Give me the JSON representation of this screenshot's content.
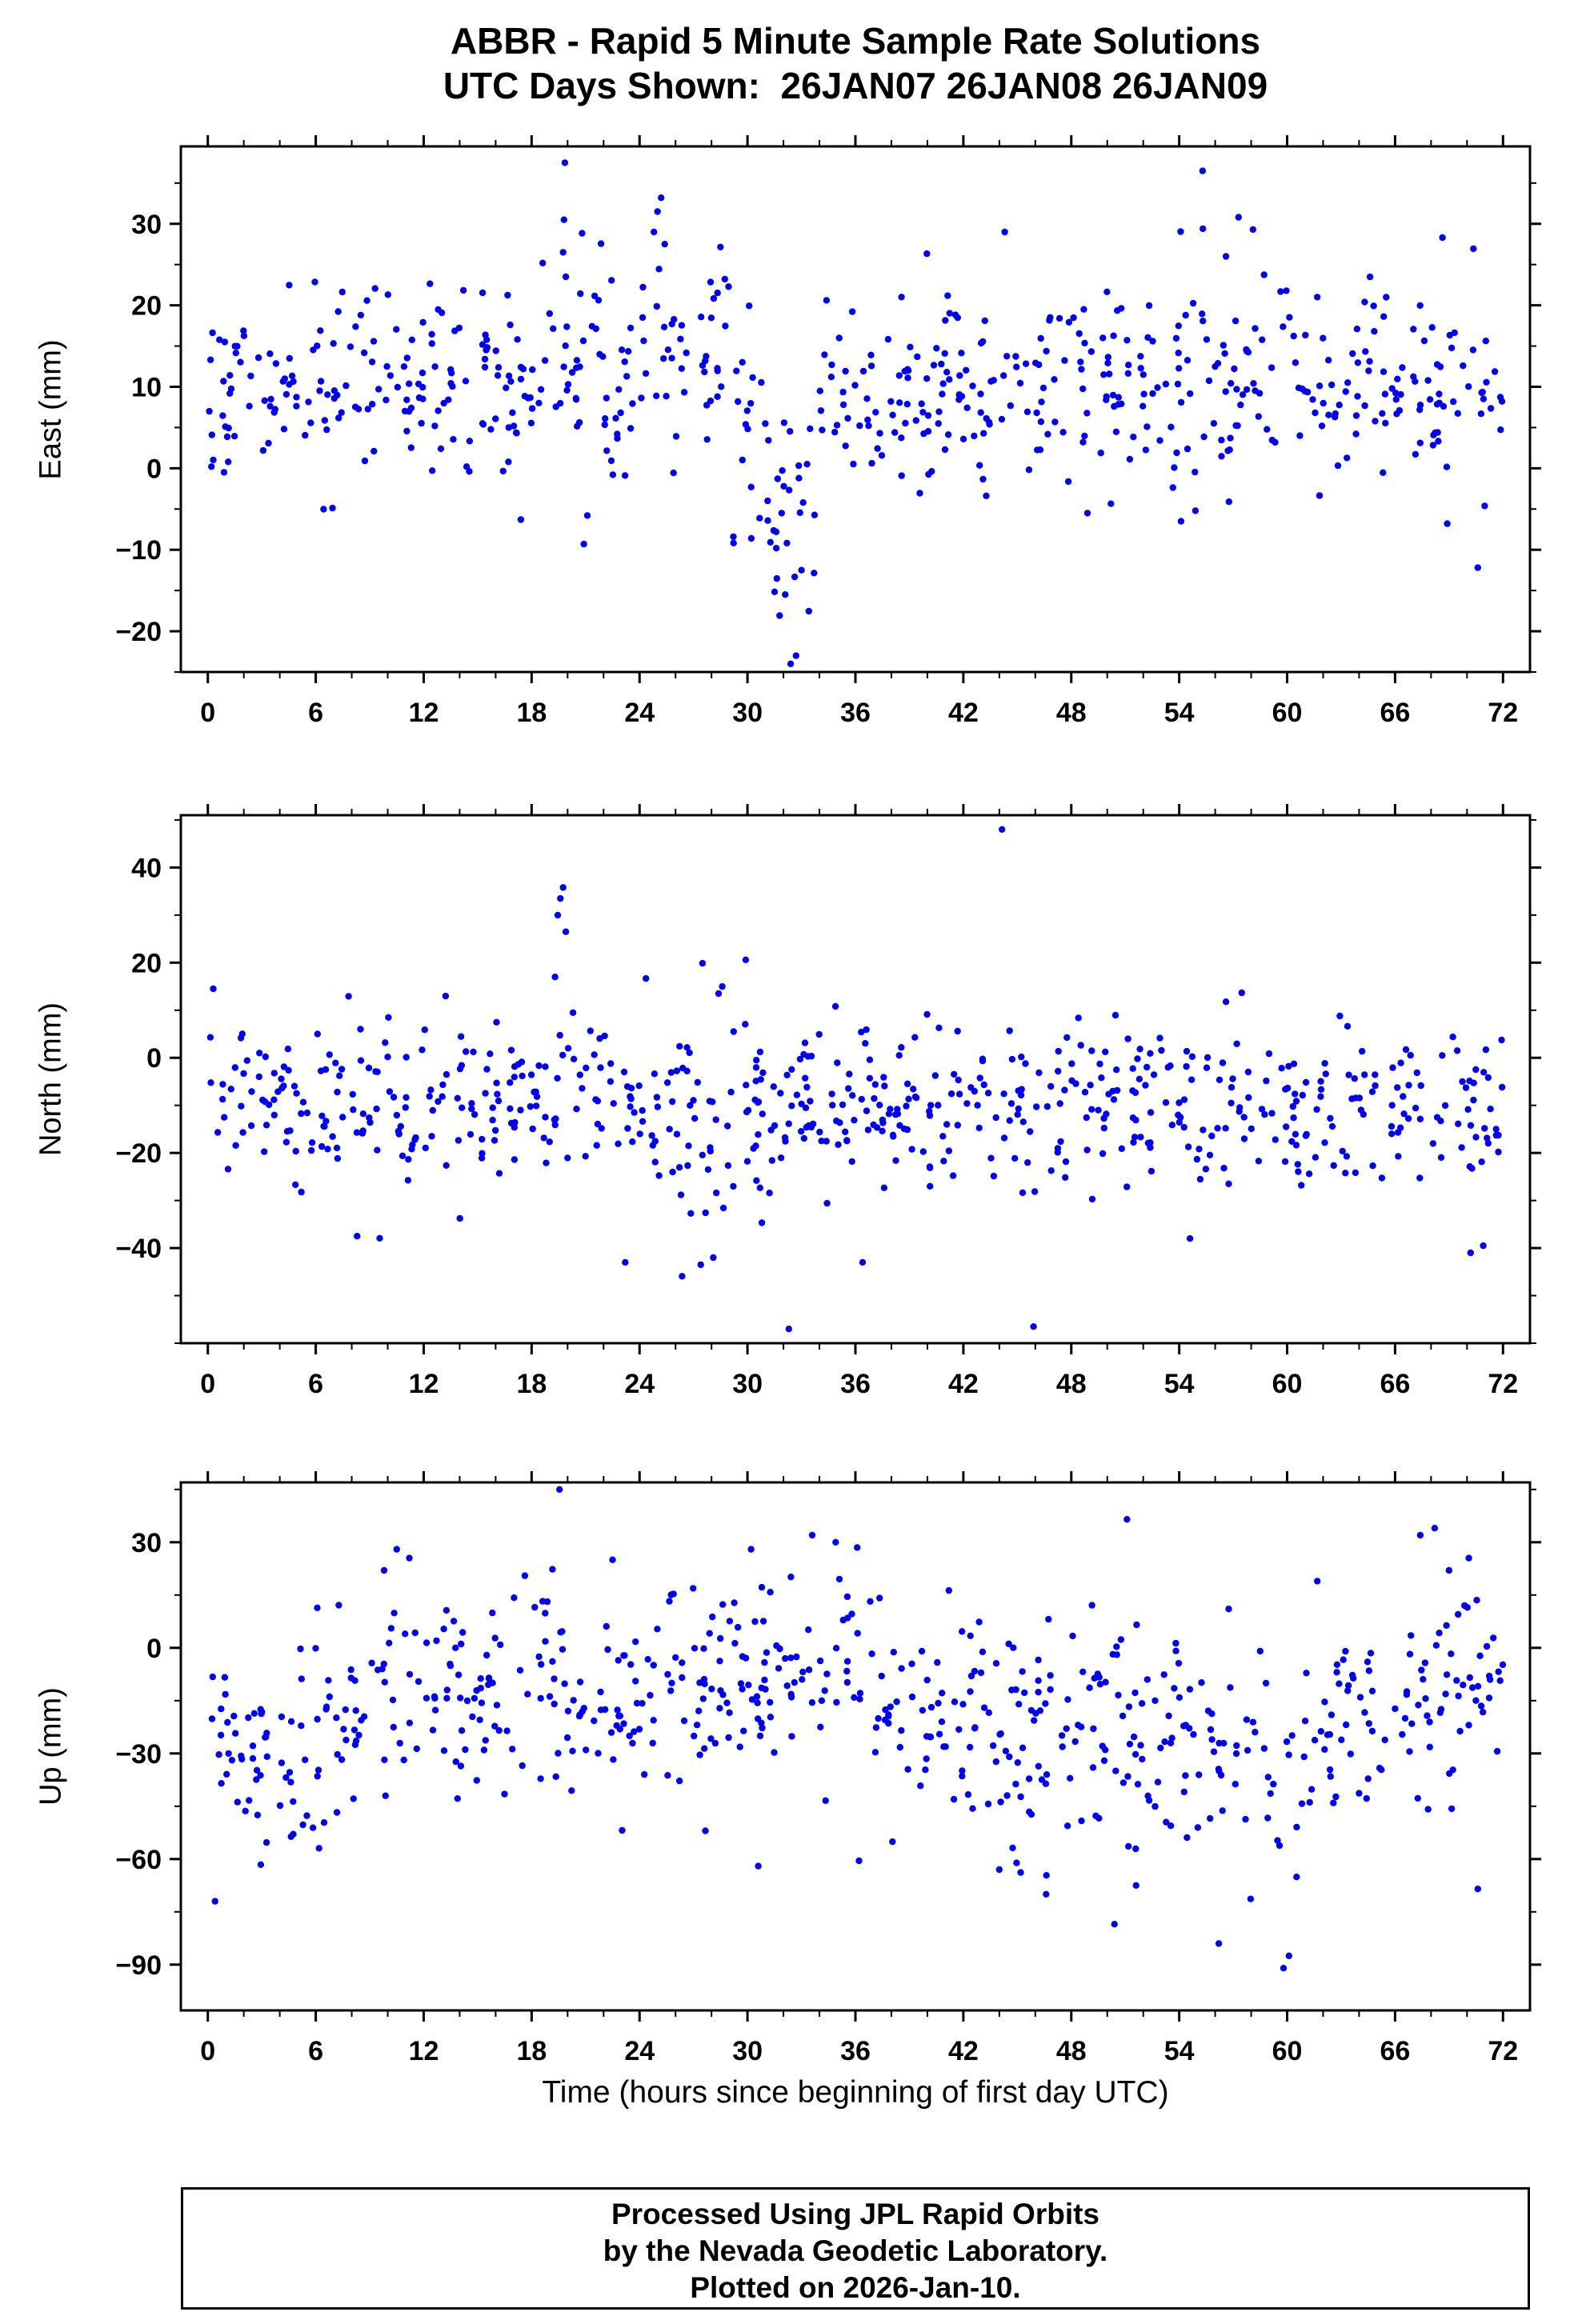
{
  "title": {
    "line1": "ABBR - Rapid 5 Minute Sample Rate Solutions",
    "line2": "UTC Days Shown:  26JAN07 26JAN08 26JAN09"
  },
  "xlabel": "Time (hours since beginning of first day UTC)",
  "footer": {
    "line1": "Processed Using JPL Rapid Orbits",
    "line2": "by the Nevada Geodetic Laboratory.",
    "line3": "Plotted on 2026-Jan-10."
  },
  "marker_color": "#0000EE",
  "chart_data": [
    {
      "type": "scatter",
      "name": "east",
      "ylabel": "East (mm)",
      "xlabel": "",
      "xlim": [
        -1.5,
        73.5
      ],
      "ylim": [
        -25,
        39.5
      ],
      "xticks": [
        0,
        6,
        12,
        18,
        24,
        30,
        36,
        42,
        48,
        54,
        60,
        66,
        72
      ],
      "yticks": [
        -20,
        -10,
        0,
        10,
        20,
        30
      ],
      "x_minor_step": 2,
      "y_minor_step": 5,
      "grid": false,
      "legend": "none",
      "seed": 20107,
      "points_per_hour": 9,
      "profile": [
        [
          0,
          20,
          11,
          5.2
        ],
        [
          20,
          29,
          12,
          5.8
        ],
        [
          29,
          31.2,
          5,
          6
        ],
        [
          31.2,
          33.8,
          -3,
          8
        ],
        [
          33.8,
          46,
          10.5,
          5.8
        ],
        [
          46,
          72,
          10.5,
          6
        ]
      ],
      "outliers": [
        [
          19.85,
          37.5
        ],
        [
          19.8,
          30.5
        ],
        [
          19.75,
          26.5
        ],
        [
          19.9,
          23.5
        ],
        [
          25.2,
          33.2
        ],
        [
          25,
          31.5
        ],
        [
          24.8,
          29
        ],
        [
          25.4,
          27.5
        ],
        [
          44.3,
          29
        ],
        [
          55.3,
          36.5
        ],
        [
          57.3,
          30.8
        ],
        [
          58.1,
          29.3
        ],
        [
          56.6,
          26
        ],
        [
          31.6,
          -9.8
        ],
        [
          32.1,
          -15.5
        ],
        [
          32.4,
          -24
        ],
        [
          32.7,
          -23
        ],
        [
          33,
          -12.5
        ],
        [
          31.9,
          -5.5
        ],
        [
          20.9,
          -9.3
        ],
        [
          21.1,
          -5.8
        ],
        [
          70.6,
          -12.2
        ],
        [
          68.9,
          -6.8
        ],
        [
          17.4,
          -6.3
        ],
        [
          48.9,
          -5.5
        ],
        [
          54.1,
          -6.5
        ],
        [
          0.2,
          0.2
        ],
        [
          0.9,
          -0.5
        ]
      ]
    },
    {
      "type": "scatter",
      "name": "north",
      "ylabel": "North (mm)",
      "xlabel": "",
      "xlim": [
        -1.5,
        73.5
      ],
      "ylim": [
        -60,
        51
      ],
      "xticks": [
        0,
        6,
        12,
        18,
        24,
        30,
        36,
        42,
        48,
        54,
        60,
        66,
        72
      ],
      "yticks": [
        -40,
        -20,
        0,
        20,
        40
      ],
      "x_minor_step": 2,
      "y_minor_step": 10,
      "grid": false,
      "legend": "none",
      "seed": 20108,
      "points_per_hour": 9,
      "profile": [
        [
          0,
          72,
          -10,
          9
        ]
      ],
      "outliers": [
        [
          19.45,
          30
        ],
        [
          19.6,
          33.5
        ],
        [
          19.75,
          35.8
        ],
        [
          19.9,
          26.5
        ],
        [
          19.3,
          17
        ],
        [
          20.3,
          9.5
        ],
        [
          44.15,
          48
        ],
        [
          29.9,
          20.6
        ],
        [
          28.6,
          15
        ],
        [
          32.3,
          -57
        ],
        [
          45.9,
          -56.5
        ],
        [
          23.2,
          -43
        ],
        [
          27.4,
          -43.5
        ],
        [
          28.1,
          -42
        ],
        [
          8.3,
          -37.5
        ],
        [
          36.4,
          -43
        ],
        [
          54.6,
          -38
        ],
        [
          70.2,
          -41
        ],
        [
          70.9,
          -39.5
        ],
        [
          0.3,
          14.5
        ],
        [
          6.1,
          5
        ]
      ]
    },
    {
      "type": "scatter",
      "name": "up",
      "ylabel": "Up (mm)",
      "xlabel": "Time (hours since beginning of first day UTC)",
      "xlim": [
        -1.5,
        73.5
      ],
      "ylim": [
        -103,
        47
      ],
      "xticks": [
        0,
        6,
        12,
        18,
        24,
        30,
        36,
        42,
        48,
        54,
        60,
        66,
        72
      ],
      "yticks": [
        -90,
        -60,
        -30,
        0,
        30
      ],
      "x_minor_step": 2,
      "y_minor_step": 15,
      "grid": false,
      "legend": "none",
      "seed": 20109,
      "points_per_hour": 9,
      "profile": [
        [
          0,
          6,
          -30,
          14
        ],
        [
          6,
          10,
          -22,
          16
        ],
        [
          10,
          21,
          -10,
          14
        ],
        [
          21,
          28,
          -14,
          14
        ],
        [
          28,
          37,
          -6,
          15
        ],
        [
          37,
          44,
          -20,
          14
        ],
        [
          44,
          62,
          -28,
          16
        ],
        [
          62,
          68,
          -18,
          14
        ],
        [
          68,
          72,
          -12,
          14
        ]
      ],
      "outliers": [
        [
          19.55,
          45
        ],
        [
          33.6,
          32
        ],
        [
          34.9,
          30
        ],
        [
          36.1,
          28.5
        ],
        [
          51.1,
          36.5
        ],
        [
          67.4,
          32
        ],
        [
          68.2,
          34
        ],
        [
          70.1,
          25.5
        ],
        [
          69,
          22
        ],
        [
          10.5,
          28
        ],
        [
          11.2,
          25.5
        ],
        [
          9.8,
          22
        ],
        [
          59.8,
          -91
        ],
        [
          60.1,
          -87.5
        ],
        [
          56.2,
          -84
        ],
        [
          50.4,
          -78.5
        ],
        [
          0.4,
          -72
        ],
        [
          46.6,
          -70
        ],
        [
          51.6,
          -67.5
        ],
        [
          70.6,
          -68.5
        ],
        [
          30.6,
          -62
        ],
        [
          36.2,
          -60.5
        ],
        [
          44,
          -63
        ],
        [
          22.5,
          25
        ],
        [
          30.2,
          28
        ]
      ]
    }
  ]
}
